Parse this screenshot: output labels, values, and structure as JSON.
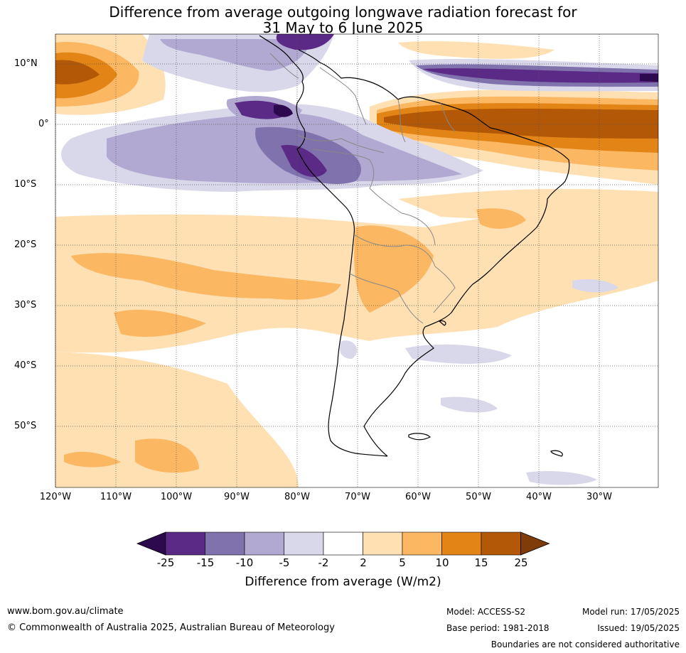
{
  "title": {
    "line1": "Difference from average outgoing longwave radiation forecast for",
    "line2": "31 May to 6 June 2025"
  },
  "map": {
    "latitude_labels": [
      "10°N",
      "0°",
      "10°S",
      "20°S",
      "30°S",
      "40°S",
      "50°S"
    ],
    "longitude_labels": [
      "120°W",
      "110°W",
      "100°W",
      "90°W",
      "80°W",
      "70°W",
      "60°W",
      "50°W",
      "40°W",
      "30°W"
    ]
  },
  "colorbar": {
    "ticks": [
      "-25",
      "-15",
      "-10",
      "-5",
      "-2",
      "2",
      "5",
      "10",
      "15",
      "25"
    ],
    "colors": [
      "#2d0a4e",
      "#5b2a86",
      "#8072ac",
      "#b1a9d1",
      "#d9d7ea",
      "#ffffff",
      "#fee0b3",
      "#fbb762",
      "#e38417",
      "#b35806",
      "#7f3b08"
    ],
    "label": "Difference from average (W/m2)"
  },
  "footer": {
    "url": "www.bom.gov.au/climate",
    "copyright": "© Commonwealth of Australia 2025, Australian Bureau of Meteorology",
    "model": "Model: ACCESS-S2",
    "base_period": "Base period: 1981-2018",
    "model_run": "Model run: 17/05/2025",
    "issued": "Issued: 19/05/2025",
    "disclaimer": "Boundaries are not considered authoritative"
  }
}
